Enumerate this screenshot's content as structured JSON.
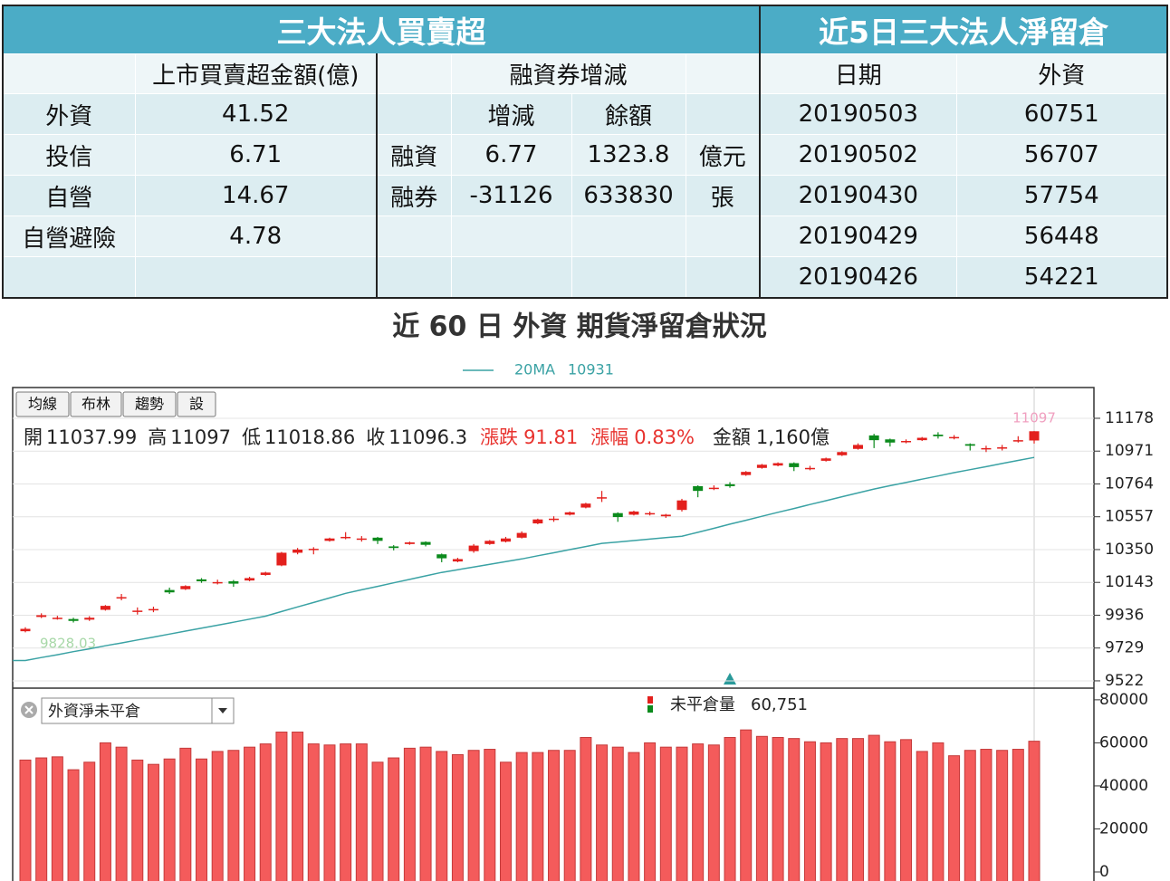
{
  "left_table": {
    "title": "三大法人買賣超",
    "header": [
      null,
      "上市買賣超金額(億)",
      null,
      "融資券增減",
      null
    ],
    "rows": [
      [
        "外資",
        "41.52",
        null,
        "增減",
        "餘額",
        null
      ],
      [
        "投信",
        "6.71",
        "融資",
        "6.77",
        "1323.8",
        "億元"
      ],
      [
        "自營",
        "14.67",
        "融券",
        "-31126",
        "633830",
        "張"
      ],
      [
        "自營避險",
        "4.78",
        null,
        null,
        null,
        null
      ],
      [
        null,
        null,
        null,
        null,
        null,
        null
      ]
    ]
  },
  "right_table": {
    "title": "近5日三大法人淨留倉",
    "header": [
      "日期",
      "外資"
    ],
    "rows": [
      [
        "20190503",
        "60751"
      ],
      [
        "20190502",
        "56707"
      ],
      [
        "20190430",
        "57754"
      ],
      [
        "20190429",
        "56448"
      ],
      [
        "20190426",
        "54221"
      ]
    ]
  },
  "chart_data": [
    {
      "type": "candlestick",
      "title": "近 60 日 外資 期貨淨留倉狀況",
      "buttons": [
        "均線",
        "布林",
        "趨勢",
        "設"
      ],
      "info": {
        "open_label": "開",
        "high_label": "高",
        "low_label": "低",
        "close_label": "收",
        "change_label": "漲跌",
        "change": 91.81,
        "pct_label": "漲幅",
        "pct": "0.83%",
        "amount_label": "金額",
        "amount": "1,160億"
      },
      "open": [
        9835,
        9925,
        9918,
        9912,
        9908,
        9970,
        10048,
        9963,
        9973,
        10095,
        10100,
        10162,
        10143,
        10150,
        10155,
        10190,
        10250,
        10330,
        10353,
        10405,
        10428,
        10418,
        10425,
        10370,
        10385,
        10398,
        10320,
        10275,
        10340,
        10385,
        10400,
        10425,
        10515,
        10543,
        10570,
        10615,
        10678,
        10580,
        10570,
        10578,
        10560,
        10600,
        10750,
        10738,
        10762,
        10820,
        10865,
        10880,
        10895,
        10863,
        10910,
        10945,
        10985,
        11070,
        11045,
        11033,
        11040,
        11075,
        11058,
        11015,
        10988,
        10990,
        11035,
        11037.99
      ],
      "high": [
        9860,
        9948,
        9932,
        9920,
        9930,
        10000,
        10070,
        9985,
        9990,
        10110,
        10125,
        10170,
        10160,
        10158,
        10178,
        10210,
        10335,
        10360,
        10365,
        10425,
        10460,
        10435,
        10430,
        10378,
        10400,
        10402,
        10325,
        10298,
        10385,
        10410,
        10430,
        10465,
        10545,
        10560,
        10590,
        10645,
        10720,
        10585,
        10595,
        10590,
        10575,
        10670,
        10755,
        10755,
        10775,
        10845,
        10890,
        10900,
        10900,
        10878,
        10930,
        10970,
        11020,
        11080,
        11050,
        11045,
        11060,
        11090,
        11072,
        11020,
        11005,
        11010,
        11065,
        11097
      ],
      "low": [
        9828.03,
        9918,
        9908,
        9890,
        9900,
        9965,
        10030,
        9940,
        9955,
        10070,
        10095,
        10140,
        10130,
        10115,
        10150,
        10185,
        10245,
        10320,
        10320,
        10400,
        10415,
        10400,
        10385,
        10345,
        10380,
        10370,
        10270,
        10270,
        10330,
        10380,
        10395,
        10420,
        10510,
        10525,
        10565,
        10610,
        10650,
        10525,
        10565,
        10565,
        10550,
        10590,
        10680,
        10725,
        10740,
        10815,
        10860,
        10875,
        10845,
        10850,
        10905,
        10940,
        10980,
        10990,
        11000,
        11020,
        11035,
        11050,
        11045,
        10975,
        10965,
        10975,
        11025,
        11018.86
      ],
      "close": [
        9850,
        9936,
        9920,
        9900,
        9920,
        9995,
        10050,
        9965,
        9975,
        10080,
        10120,
        10150,
        10145,
        10135,
        10170,
        10205,
        10330,
        10350,
        10355,
        10420,
        10430,
        10420,
        10405,
        10360,
        10395,
        10380,
        10295,
        10290,
        10375,
        10405,
        10420,
        10455,
        10540,
        10545,
        10585,
        10640,
        10680,
        10555,
        10590,
        10580,
        10570,
        10660,
        10720,
        10740,
        10750,
        10840,
        10885,
        10895,
        10870,
        10865,
        10925,
        10965,
        11010,
        11040,
        11025,
        11035,
        11055,
        11065,
        11060,
        11005,
        10990,
        10995,
        11040,
        11096.3
      ],
      "series": [
        {
          "name": "20MA",
          "color": "#3aa2a4",
          "values": [
            9650,
            9669,
            9687,
            9706,
            9724,
            9743,
            9761,
            9780,
            9798,
            9817,
            9836,
            9854,
            9873,
            9892,
            9911,
            9930,
            9959,
            9988,
            10016,
            10045,
            10074,
            10096,
            10118,
            10140,
            10162,
            10184,
            10206,
            10223,
            10240,
            10257,
            10274,
            10291,
            10311,
            10330,
            10350,
            10369,
            10389,
            10398,
            10407,
            10416,
            10425,
            10434,
            10459,
            10484,
            10510,
            10535,
            10560,
            10585,
            10609,
            10634,
            10658,
            10683,
            10707,
            10732,
            10753,
            10773,
            10794,
            10814,
            10835,
            10854,
            10873,
            10893,
            10912,
            10931
          ]
        }
      ],
      "up_color": "#e3201d",
      "down_color": "#0b8a1c",
      "ylim": [
        9476,
        11372
      ],
      "yticks": [
        11178,
        10971,
        10764,
        10557,
        10350,
        10143,
        9936,
        9729,
        9522
      ],
      "grid": true
    },
    {
      "type": "bar",
      "selector": "外資淨未平倉",
      "series": [
        {
          "name": "未平倉量",
          "color": "#f45b5b",
          "values": [
            52000,
            53000,
            53500,
            47500,
            51000,
            60000,
            58000,
            52000,
            50000,
            52500,
            57500,
            52500,
            56000,
            56500,
            58000,
            59500,
            65000,
            65000,
            59500,
            59000,
            59500,
            59500,
            51000,
            53000,
            57500,
            58000,
            56000,
            54500,
            56500,
            57000,
            51000,
            55500,
            55500,
            56500,
            56500,
            62500,
            59000,
            58000,
            55500,
            60000,
            58000,
            58000,
            59500,
            59000,
            62500,
            66000,
            63000,
            62500,
            62000,
            60500,
            60000,
            62000,
            62000,
            63500,
            60500,
            61500,
            56000,
            60000,
            54000,
            56500,
            57000,
            56500,
            57000,
            60751
          ]
        }
      ],
      "legend_value_label": "60,751",
      "ylim": [
        0,
        85000
      ],
      "yticks": [
        0,
        20000,
        40000,
        60000,
        80000
      ],
      "grid": false
    }
  ]
}
